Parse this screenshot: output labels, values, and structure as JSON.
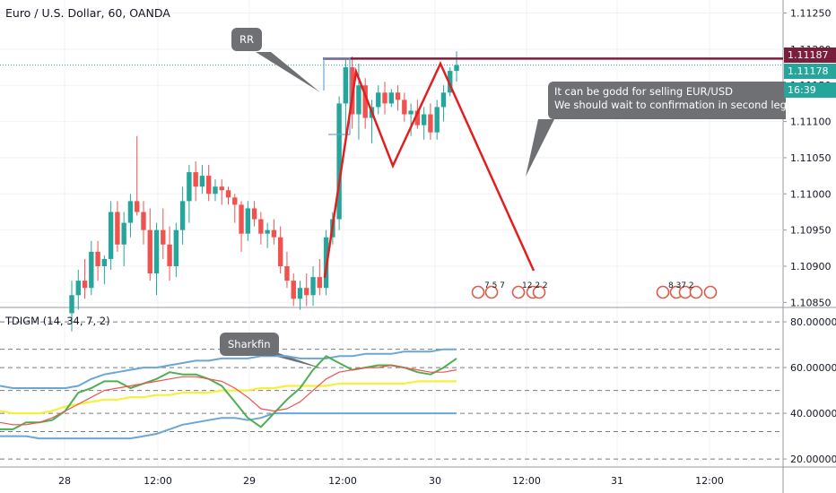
{
  "header": {
    "title": "Euro / U.S. Dollar, 60, OANDA"
  },
  "indicator": {
    "title": "TDIGM (14, 34, 7, 2)"
  },
  "annotations": {
    "rr": "RR",
    "sharkfin": "Sharkfin",
    "note_line1": "It can be godd for selling EUR/USD",
    "note_line2": "We should wait to confirmation in second leg"
  },
  "price_labels": {
    "resistance": "1.11187",
    "current": "1.11178",
    "countdown": "16:39"
  },
  "event_icons": {
    "group1": "7 5 7",
    "group2": "12  2 2",
    "group3": "8 37  2"
  },
  "colors": {
    "bull": "#26a69a",
    "bear": "#ef5350",
    "resistance_line": "#7a1e3d",
    "pattern": "#e02020",
    "current_price": "#26a69a",
    "ma_yellow": "#f5f03c",
    "band_blue": "#6aa6d6",
    "fast_green": "#4caf50",
    "slow_red": "#ef5350"
  },
  "chart_data": [
    {
      "type": "candlestick",
      "title": "Euro / U.S. Dollar, 60, OANDA",
      "ylim": [
        1.10843,
        1.11268
      ],
      "yticks": [
        "1.11250",
        "1.11200",
        "1.11150",
        "1.11100",
        "1.11050",
        "1.11000",
        "1.10950",
        "1.10900",
        "1.10850"
      ],
      "xticks": [
        "28",
        "12:00",
        "29",
        "12:00",
        "30",
        "12:00",
        "31",
        "12:00"
      ],
      "resistance": 1.11187,
      "current_price": 1.11178,
      "ohlc": [
        [
          1.10835,
          1.1088,
          1.1081,
          1.1086
        ],
        [
          1.1086,
          1.10895,
          1.1084,
          1.1088
        ],
        [
          1.1088,
          1.1091,
          1.10855,
          1.1087
        ],
        [
          1.1087,
          1.10935,
          1.1086,
          1.1092
        ],
        [
          1.1092,
          1.10935,
          1.1088,
          1.109
        ],
        [
          1.109,
          1.10915,
          1.10875,
          1.1091
        ],
        [
          1.1091,
          1.1099,
          1.10895,
          1.10975
        ],
        [
          1.10975,
          1.1099,
          1.1092,
          1.1093
        ],
        [
          1.1093,
          1.10975,
          1.109,
          1.1096
        ],
        [
          1.1096,
          1.11,
          1.1094,
          1.1099
        ],
        [
          1.1099,
          1.1108,
          1.1097,
          1.10975
        ],
        [
          1.10975,
          1.1099,
          1.1093,
          1.1095
        ],
        [
          1.1095,
          1.1098,
          1.1088,
          1.1089
        ],
        [
          1.1089,
          1.1096,
          1.1086,
          1.1095
        ],
        [
          1.1095,
          1.1098,
          1.1091,
          1.1093
        ],
        [
          1.1093,
          1.10955,
          1.1088,
          1.109
        ],
        [
          1.109,
          1.1096,
          1.10885,
          1.1095
        ],
        [
          1.1095,
          1.1101,
          1.1093,
          1.1099
        ],
        [
          1.1099,
          1.1104,
          1.1096,
          1.1103
        ],
        [
          1.1103,
          1.11045,
          1.1099,
          1.1101
        ],
        [
          1.1101,
          1.1104,
          1.11,
          1.11025
        ],
        [
          1.11025,
          1.1104,
          1.1099,
          1.11
        ],
        [
          1.11,
          1.1102,
          1.1099,
          1.1101
        ],
        [
          1.1101,
          1.1102,
          1.10985,
          1.11005
        ],
        [
          1.11005,
          1.1101,
          1.10985,
          1.10995
        ],
        [
          1.10995,
          1.11,
          1.1096,
          1.10985
        ],
        [
          1.10985,
          1.1099,
          1.1092,
          1.10945
        ],
        [
          1.10945,
          1.1099,
          1.10935,
          1.1098
        ],
        [
          1.1098,
          1.1099,
          1.10955,
          1.10965
        ],
        [
          1.10965,
          1.10975,
          1.1093,
          1.10945
        ],
        [
          1.10945,
          1.1096,
          1.10925,
          1.1095
        ],
        [
          1.1095,
          1.10965,
          1.1093,
          1.1094
        ],
        [
          1.1094,
          1.10955,
          1.1089,
          1.109
        ],
        [
          1.109,
          1.1092,
          1.1087,
          1.1088
        ],
        [
          1.1088,
          1.1089,
          1.10845,
          1.10855
        ],
        [
          1.10855,
          1.1088,
          1.1084,
          1.1087
        ],
        [
          1.1087,
          1.1089,
          1.10845,
          1.1086
        ],
        [
          1.1086,
          1.109,
          1.10845,
          1.10885
        ],
        [
          1.10885,
          1.1091,
          1.1086,
          1.1087
        ],
        [
          1.1087,
          1.1095,
          1.1086,
          1.1094
        ],
        [
          1.1094,
          1.10975,
          1.1093,
          1.10965
        ],
        [
          1.10965,
          1.11135,
          1.1095,
          1.11125
        ],
        [
          1.11125,
          1.11185,
          1.1108,
          1.11175
        ],
        [
          1.11175,
          1.1119,
          1.1109,
          1.1111
        ],
        [
          1.1111,
          1.1118,
          1.11075,
          1.1115
        ],
        [
          1.1115,
          1.1116,
          1.1109,
          1.11105
        ],
        [
          1.11105,
          1.1113,
          1.1107,
          1.1112
        ],
        [
          1.1112,
          1.1115,
          1.1111,
          1.1114
        ],
        [
          1.1114,
          1.11155,
          1.1111,
          1.11125
        ],
        [
          1.11125,
          1.11145,
          1.1112,
          1.1114
        ],
        [
          1.1114,
          1.1115,
          1.11115,
          1.1113
        ],
        [
          1.1113,
          1.1114,
          1.111,
          1.1111
        ],
        [
          1.1111,
          1.11125,
          1.1108,
          1.11115
        ],
        [
          1.11115,
          1.1113,
          1.1109,
          1.11095
        ],
        [
          1.11095,
          1.1112,
          1.11075,
          1.1111
        ],
        [
          1.1111,
          1.11125,
          1.11075,
          1.11085
        ],
        [
          1.11085,
          1.1113,
          1.11075,
          1.1112
        ],
        [
          1.1112,
          1.1115,
          1.111,
          1.1114
        ],
        [
          1.1114,
          1.11175,
          1.11135,
          1.1117
        ],
        [
          1.1117,
          1.11197,
          1.11155,
          1.11178
        ]
      ],
      "pattern_points": [
        [
          1.1088,
          1.1088
        ],
        [
          1.11165,
          1.11165
        ]
      ]
    },
    {
      "type": "line",
      "title": "TDIGM (14, 34, 7, 2)",
      "ylim": [
        16.5,
        86.3
      ],
      "yticks": [
        "80.00000",
        "60.00000",
        "40.00000",
        "20.00000"
      ],
      "levels": [
        32,
        50,
        68
      ],
      "series": [
        {
          "key": "upper_band",
          "values": [
            52,
            51,
            51,
            51,
            51,
            51,
            52,
            55,
            57,
            58,
            59,
            60,
            60,
            61,
            62,
            63,
            63,
            64,
            64,
            64,
            65,
            65,
            65,
            64,
            64,
            64,
            65,
            65,
            66,
            66,
            66,
            67,
            67,
            67,
            68,
            68
          ]
        },
        {
          "key": "lower_band",
          "values": [
            30,
            30,
            30,
            29,
            29,
            29,
            29,
            29,
            29,
            29,
            29,
            30,
            31,
            33,
            35,
            36,
            37,
            38,
            38,
            37,
            38,
            40,
            40,
            40,
            40,
            40,
            40,
            40,
            40,
            40,
            40,
            40,
            40,
            40,
            40,
            40
          ]
        },
        {
          "key": "middle_line",
          "values": [
            41,
            40,
            40,
            40,
            41,
            43,
            44,
            45,
            46,
            46,
            47,
            47,
            48,
            48,
            49,
            49,
            49,
            50,
            50,
            50,
            51,
            51,
            52,
            52,
            52,
            52,
            53,
            53,
            53,
            53,
            53,
            53,
            54,
            54,
            54,
            54
          ]
        },
        {
          "key": "fast_line",
          "values": [
            33,
            33,
            36,
            36,
            37,
            41,
            49,
            51,
            54,
            54,
            51,
            53,
            55,
            58,
            57,
            57,
            55,
            52,
            45,
            38,
            34,
            40,
            46,
            51,
            59,
            65,
            62,
            59,
            60,
            61,
            61,
            60,
            58,
            57,
            60,
            64
          ]
        },
        {
          "key": "slow_line",
          "values": [
            36,
            35,
            35,
            36,
            38,
            41,
            44,
            47,
            50,
            51,
            52,
            53,
            54,
            55,
            56,
            56,
            55,
            54,
            51,
            47,
            42,
            41,
            42,
            45,
            50,
            55,
            58,
            59,
            60,
            60,
            61,
            60,
            59,
            58,
            58,
            59
          ]
        }
      ]
    }
  ]
}
